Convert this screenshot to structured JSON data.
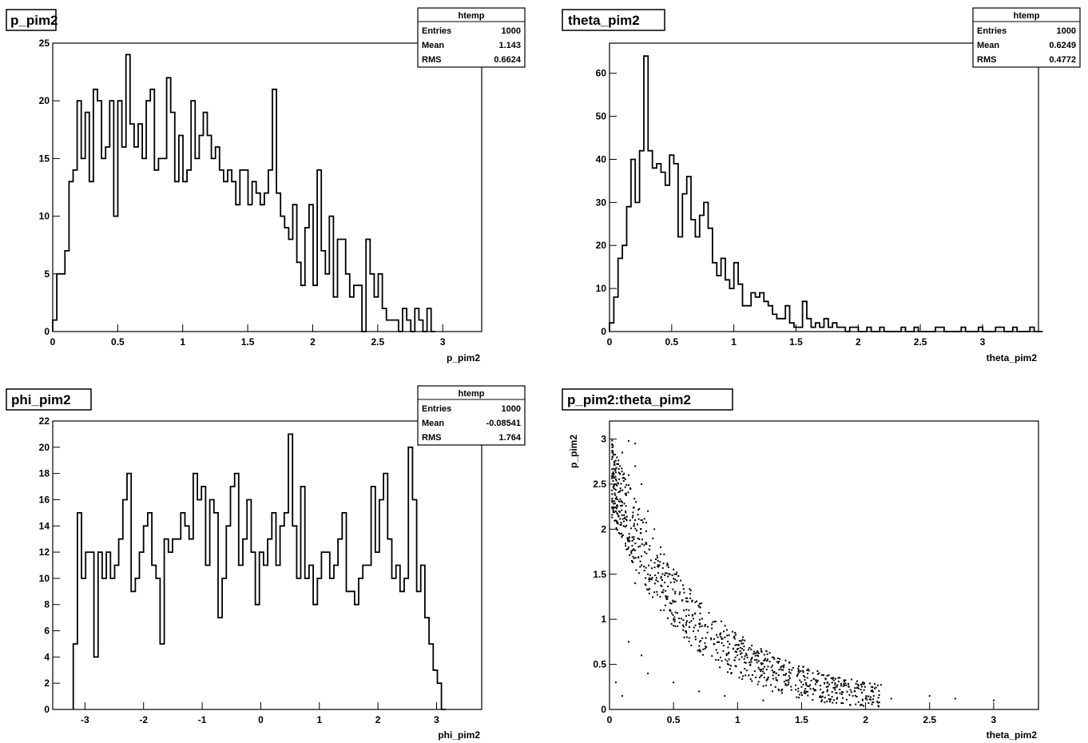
{
  "chart_data": [
    {
      "type": "histogram",
      "title": "p_pim2",
      "xlabel": "p_pim2",
      "ylabel": "",
      "xlim": [
        0,
        3.3
      ],
      "ylim": [
        0,
        25
      ],
      "x_ticks": [
        "0",
        "0.5",
        "1",
        "1.5",
        "2",
        "2.5",
        "3"
      ],
      "y_ticks": [
        "0",
        "5",
        "10",
        "15",
        "20",
        "25"
      ],
      "bin_start": 0,
      "bin_width": 0.0313,
      "values": [
        1,
        5,
        5,
        7,
        13,
        14,
        20,
        15,
        19,
        13,
        21,
        20,
        15,
        16,
        20,
        10,
        20,
        16,
        24,
        18,
        16,
        18,
        15,
        20,
        21,
        14,
        15,
        15,
        22,
        19,
        13,
        17,
        13,
        14,
        20,
        15,
        17,
        19,
        17,
        15,
        16,
        14,
        13,
        14,
        13,
        11,
        14,
        14,
        11,
        13,
        12,
        11,
        12,
        14,
        21,
        12,
        10,
        9,
        8,
        11,
        6,
        4,
        9,
        11,
        4,
        14,
        7,
        5,
        10,
        3,
        8,
        8,
        5,
        3,
        4,
        4,
        0,
        8,
        5,
        3,
        5,
        2,
        1,
        1,
        1,
        0,
        2,
        1,
        0,
        2,
        1,
        0,
        2,
        0
      ],
      "stats": {
        "header": "htemp",
        "rows": [
          [
            "Entries",
            "1000"
          ],
          [
            "Mean",
            "1.143"
          ],
          [
            "RMS",
            "0.6624"
          ]
        ]
      }
    },
    {
      "type": "histogram",
      "title": "theta_pim2",
      "xlabel": "theta_pim2",
      "ylabel": "",
      "xlim": [
        0,
        3.45
      ],
      "ylim": [
        0,
        67
      ],
      "x_ticks": [
        "0",
        "0.5",
        "1",
        "1.5",
        "2",
        "2.5",
        "3"
      ],
      "y_ticks": [
        "0",
        "10",
        "20",
        "30",
        "40",
        "50",
        "60"
      ],
      "bin_start": 0,
      "bin_width": 0.0345,
      "values": [
        2,
        8,
        17,
        20,
        29,
        40,
        30,
        42,
        64,
        42,
        38,
        39,
        37,
        34,
        41,
        39,
        22,
        32,
        36,
        26,
        22,
        27,
        30,
        24,
        16,
        13,
        17,
        12,
        10,
        16,
        11,
        6,
        6,
        9,
        8,
        9,
        7,
        6,
        4,
        3,
        3,
        6,
        2,
        1,
        1,
        7,
        3,
        1,
        2,
        1,
        3,
        1,
        2,
        1,
        1,
        0,
        1,
        1,
        0,
        0,
        1,
        0,
        0,
        1,
        0,
        0,
        0,
        0,
        1,
        0,
        0,
        1,
        0,
        0,
        0,
        0,
        1,
        1,
        0,
        0,
        0,
        0,
        1,
        0,
        0,
        0,
        1,
        0,
        0,
        0,
        1,
        1,
        0,
        0,
        1,
        0,
        0,
        0,
        1,
        0,
        0
      ],
      "stats": {
        "header": "htemp",
        "rows": [
          [
            "Entries",
            "1000"
          ],
          [
            "Mean",
            "0.6249"
          ],
          [
            "RMS",
            "0.4772"
          ]
        ]
      }
    },
    {
      "type": "histogram",
      "title": "phi_pim2",
      "xlabel": "phi_pim2",
      "ylabel": "",
      "xlim": [
        -3.55,
        3.77
      ],
      "ylim": [
        0,
        22
      ],
      "x_ticks": [
        "-3",
        "-2",
        "-1",
        "0",
        "1",
        "2",
        "3"
      ],
      "y_ticks": [
        "0",
        "2",
        "4",
        "6",
        "8",
        "10",
        "12",
        "14",
        "16",
        "18",
        "20",
        "22"
      ],
      "bin_start": -3.2,
      "bin_width": 0.0706,
      "values": [
        5,
        15,
        10,
        12,
        12,
        4,
        12,
        10,
        12,
        10,
        11,
        13,
        16,
        18,
        9,
        10,
        12,
        14,
        15,
        11,
        10,
        5,
        13,
        12,
        13,
        13,
        15,
        14,
        13,
        18,
        16,
        17,
        11,
        16,
        15,
        7,
        10,
        14,
        17,
        18,
        11,
        13,
        16,
        12,
        8,
        12,
        11,
        13,
        15,
        11,
        14,
        15,
        21,
        14,
        10,
        17,
        10,
        11,
        8,
        10,
        12,
        12,
        10,
        11,
        13,
        15,
        9,
        9,
        8,
        10,
        11,
        11,
        17,
        12,
        16,
        18,
        13,
        10,
        11,
        9,
        10,
        20,
        16,
        9,
        11,
        7,
        5,
        3,
        2,
        0
      ],
      "stats": {
        "header": "htemp",
        "rows": [
          [
            "Entries",
            "1000"
          ],
          [
            "Mean",
            "-0.08541"
          ],
          [
            "RMS",
            "1.764"
          ]
        ]
      }
    },
    {
      "type": "scatter",
      "title": "p_pim2:theta_pim2",
      "xlabel": "theta_pim2",
      "ylabel": "p_pim2",
      "xlim": [
        0,
        3.35
      ],
      "ylim": [
        0,
        3.2
      ],
      "x_ticks": [
        "0",
        "0.5",
        "1",
        "1.5",
        "2",
        "2.5",
        "3"
      ],
      "y_ticks": [
        "0",
        "0.5",
        "1",
        "1.5",
        "2",
        "2.5",
        "3"
      ],
      "points": [
        [
          0.15,
          2.98
        ],
        [
          0.2,
          2.95
        ],
        [
          0.1,
          2.85
        ],
        [
          0.2,
          2.7
        ],
        [
          0.15,
          2.6
        ],
        [
          0.05,
          2.5
        ],
        [
          0.25,
          2.5
        ],
        [
          0.1,
          2.3
        ],
        [
          0.3,
          2.2
        ],
        [
          0.05,
          2.2
        ],
        [
          0.2,
          2.1
        ],
        [
          0.35,
          2.0
        ],
        [
          0.15,
          1.9
        ],
        [
          0.4,
          1.8
        ],
        [
          0.25,
          1.7
        ],
        [
          0.45,
          1.6
        ],
        [
          0.3,
          1.5
        ],
        [
          0.5,
          1.45
        ],
        [
          0.2,
          1.4
        ],
        [
          0.55,
          1.3
        ],
        [
          0.35,
          1.3
        ],
        [
          0.6,
          1.2
        ],
        [
          0.4,
          1.1
        ],
        [
          0.65,
          1.05
        ],
        [
          0.5,
          1.0
        ],
        [
          0.7,
          0.95
        ],
        [
          0.8,
          0.9
        ],
        [
          0.6,
          0.85
        ],
        [
          0.9,
          0.8
        ],
        [
          0.75,
          0.7
        ],
        [
          1.0,
          0.6
        ],
        [
          0.85,
          0.55
        ],
        [
          1.1,
          0.5
        ],
        [
          1.2,
          0.45
        ],
        [
          0.95,
          0.4
        ],
        [
          1.3,
          0.35
        ],
        [
          1.4,
          0.3
        ],
        [
          1.5,
          0.25
        ],
        [
          1.6,
          0.22
        ],
        [
          1.7,
          0.2
        ],
        [
          1.8,
          0.18
        ],
        [
          1.9,
          0.15
        ],
        [
          2.0,
          0.12
        ],
        [
          2.2,
          0.12
        ],
        [
          2.5,
          0.15
        ],
        [
          2.7,
          0.12
        ],
        [
          3.0,
          0.1
        ],
        [
          0.05,
          0.3
        ],
        [
          0.1,
          0.15
        ],
        [
          0.3,
          0.4
        ],
        [
          0.5,
          0.3
        ],
        [
          0.7,
          0.2
        ],
        [
          0.9,
          0.15
        ],
        [
          1.2,
          0.1
        ],
        [
          0.25,
          0.6
        ],
        [
          0.15,
          0.75
        ]
      ],
      "cloud_note": ""
    }
  ]
}
